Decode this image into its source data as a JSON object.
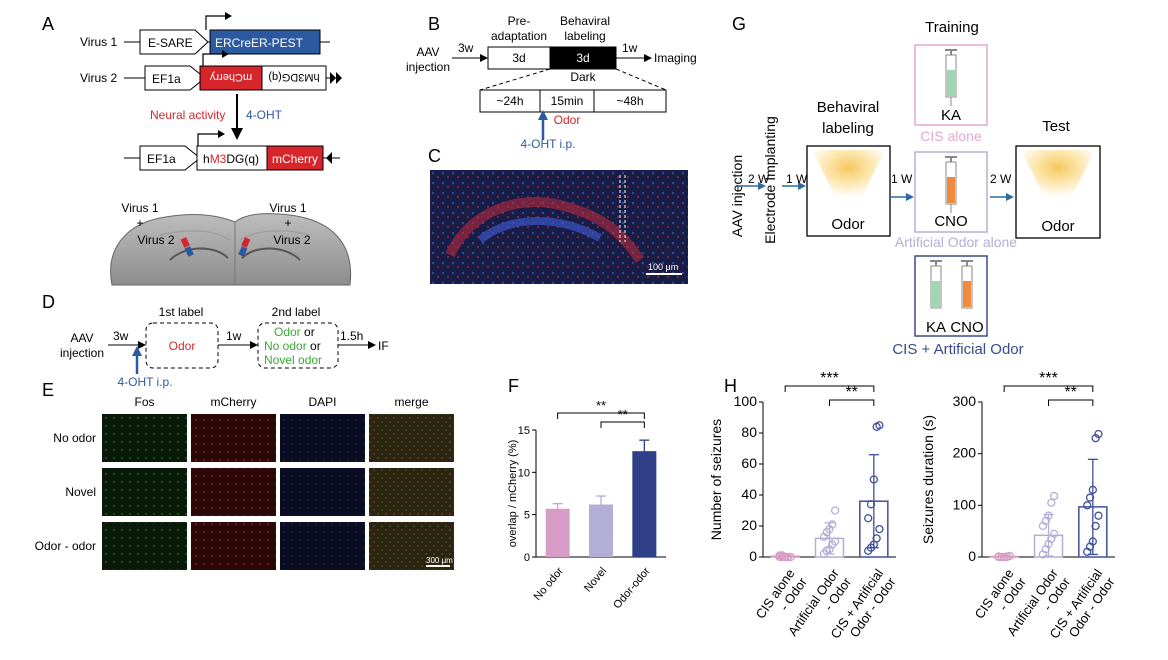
{
  "panelA": {
    "letter": "A",
    "virus1": "Virus 1",
    "virus2": "Virus 2",
    "esare": "E-SARE",
    "ercreer": "ERCreER-PEST",
    "ef1a_1": "EF1a",
    "mcherry_inv": "mCherry",
    "hm3dg_inv": "hM3DG(q)",
    "neural_activity": "Neural activity",
    "ohT": "4-OHT",
    "ef1a_2": "EF1a",
    "hm3dg_a": "hM3DG(q)",
    "hm3dg_h": "h",
    "hm3dg_m3": "M3",
    "hm3dg_rest": "DG(q)",
    "mcherry": "mCherry",
    "brain_left_1": "Virus 1",
    "brain_left_plus": "+",
    "brain_left_2": "Virus 2",
    "brain_right_1": "Virus 1",
    "brain_right_plus": "+",
    "brain_right_2": "Virus 2"
  },
  "panelB": {
    "letter": "B",
    "aav": "AAV",
    "injection": "injection",
    "w3": "3w",
    "preadapt1": "Pre-",
    "preadapt2": "adaptation",
    "behav1": "Behaviral",
    "behav2": "labeling",
    "d3a": "3d",
    "d3b": "3d",
    "w1": "1w",
    "imaging": "Imaging",
    "dark": "Dark",
    "h24": "~24h",
    "min15": "15min",
    "h48": "~48h",
    "odor": "Odor",
    "ohtip": "4-OHT i.p."
  },
  "panelC": {
    "letter": "C",
    "scalebar": "100 μm"
  },
  "panelD": {
    "letter": "D",
    "aav": "AAV",
    "injection": "injection",
    "w3": "3w",
    "label1": "1st label",
    "odor_red": "Odor",
    "w1": "1w",
    "label2": "2nd label",
    "opt1": "Odor",
    "or1": " or",
    "opt2": "No odor",
    "or2": " or",
    "opt3": "Novel odor",
    "h15": "1.5h",
    "if": "IF",
    "ohtip": "4-OHT i.p."
  },
  "panelE": {
    "letter": "E",
    "cols": [
      "Fos",
      "mCherry",
      "DAPI",
      "merge"
    ],
    "rows": [
      "No odor",
      "Novel",
      "Odor - odor"
    ],
    "scalebar": "300 μm"
  },
  "panelG": {
    "letter": "G",
    "aav": "AAV injection",
    "electrode": "Electrode Implanting",
    "w2a": "2 W",
    "w1a": "1 W",
    "w1b": "1 W",
    "w2b": "2 W",
    "behav1": "Behaviral",
    "behav2": "labeling",
    "odor_box1": "Odor",
    "training": "Training",
    "ka": "KA",
    "cis_alone": "CIS alone",
    "cno": "CNO",
    "art_odor_alone": "Artificial Odor alone",
    "ka2": "KA",
    "cno2": "CNO",
    "cis_art": "CIS + Artificial Odor",
    "test": "Test",
    "odor_box2": "Odor"
  },
  "chart_data": [
    {
      "panel": "F",
      "type": "bar",
      "ylabel": "overlap / mCherry (%)",
      "ylim": [
        0,
        15
      ],
      "yticks": [
        0,
        5,
        10,
        15
      ],
      "categories": [
        "No odor",
        "Novel",
        "Odor-odor"
      ],
      "values": [
        5.7,
        6.2,
        12.5
      ],
      "errors": [
        0.6,
        1.0,
        1.3
      ],
      "colors": [
        "#d79cc6",
        "#b3aed6",
        "#2e3f88"
      ],
      "significance": [
        {
          "from": 0,
          "to": 2,
          "label": "**"
        },
        {
          "from": 1,
          "to": 2,
          "label": "**"
        }
      ]
    },
    {
      "panel": "H",
      "type": "bar",
      "ylabel": "Number of seizures",
      "ylim": [
        0,
        100
      ],
      "yticks": [
        0,
        20,
        40,
        60,
        80,
        100
      ],
      "categories": [
        "CIS alone\n- Odor",
        "Artificial Odor\n- Odor",
        "CIS + Artificial\nOdor - Odor"
      ],
      "values": [
        0.5,
        12,
        36
      ],
      "errors": [
        0.5,
        10,
        30
      ],
      "colors": [
        "#d79cc6",
        "#b3aed6",
        "#3f4f9a"
      ],
      "points": [
        [
          0,
          0,
          0,
          0,
          0,
          1,
          1,
          0,
          0
        ],
        [
          2,
          4,
          5,
          8,
          10,
          13,
          16,
          18,
          21,
          30
        ],
        [
          4,
          6,
          8,
          12,
          18,
          25,
          34,
          50,
          84,
          85
        ]
      ],
      "significance": [
        {
          "from": 0,
          "to": 2,
          "label": "***"
        },
        {
          "from": 1,
          "to": 2,
          "label": "**"
        }
      ]
    },
    {
      "panel": "H2",
      "type": "bar",
      "ylabel": "Seizures duration (s)",
      "ylim": [
        0,
        300
      ],
      "yticks": [
        0,
        100,
        200,
        300
      ],
      "categories": [
        "CIS alone\n- Odor",
        "Artificial Odor\n- Odor",
        "CIS + Artificial\nOdor - Odor"
      ],
      "values": [
        1,
        42,
        97
      ],
      "errors": [
        1,
        40,
        92
      ],
      "colors": [
        "#d79cc6",
        "#b3aed6",
        "#3f4f9a"
      ],
      "points": [
        [
          0,
          0,
          0,
          1,
          2,
          1,
          0,
          0,
          0
        ],
        [
          5,
          15,
          25,
          35,
          45,
          60,
          70,
          80,
          105,
          118
        ],
        [
          10,
          20,
          30,
          60,
          80,
          100,
          115,
          130,
          230,
          238
        ]
      ],
      "significance": [
        {
          "from": 0,
          "to": 2,
          "label": "***"
        },
        {
          "from": 1,
          "to": 2,
          "label": "**"
        }
      ]
    }
  ],
  "panelF": {
    "letter": "F"
  },
  "panelH": {
    "letter": "H"
  }
}
